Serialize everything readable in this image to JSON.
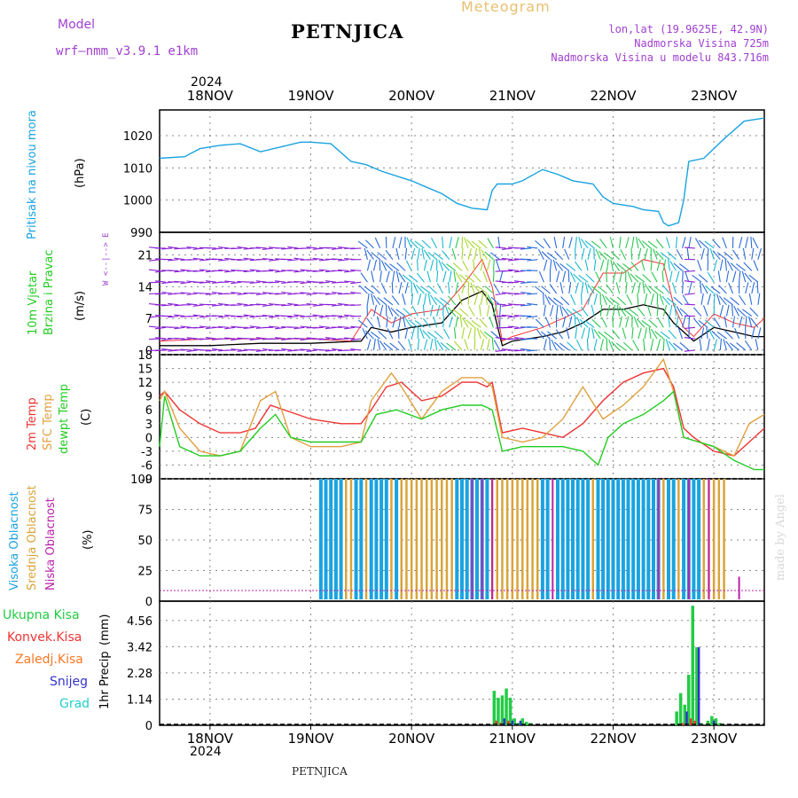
{
  "header": {
    "model_label": "Model",
    "model_name": "wrf—nmm_v3.9.1  e1km",
    "station": "PETNJICA",
    "meteogram": "Meteogram",
    "lonlat": "lon,lat (19.9625E, 42.9N)",
    "elev": "Nadmorska Visina 725m",
    "elev_model": "Nadmorska Visina u modelu 843.716m",
    "year_top": "2024",
    "year_bottom": "2024",
    "footer_station": "PETNJICA",
    "credit": "made by Angel"
  },
  "colors": {
    "pressure": "#1aa3e0",
    "wind_speed": "#000000",
    "wind_gust": "#ff3333",
    "temp2m": "#ee3333",
    "sfc": "#e0a040",
    "dewpt": "#22cc22",
    "high": "#1aa3e0",
    "mid": "#d9a43a",
    "low": "#bb22aa",
    "total": "#22cc44",
    "convective": "#ee3333",
    "frozen": "#ff7722",
    "snow": "#3333cc",
    "graupel": "#22cccc"
  },
  "chart_data": [
    {
      "type": "line",
      "ylabel_main": "Pritisak na nivou mora",
      "ylabel_unit": "(hPa)",
      "ylim": [
        990,
        1028
      ],
      "yticks": [
        990,
        1000,
        1010,
        1020
      ],
      "xticks": [
        "18NOV",
        "19NOV",
        "20NOV",
        "21NOV",
        "22NOV",
        "23NOV"
      ],
      "x_day_range": [
        17.5,
        23.5
      ],
      "series": [
        {
          "key": "pressure",
          "x": [
            17.5,
            17.75,
            17.9,
            18.1,
            18.3,
            18.5,
            18.7,
            18.9,
            19.0,
            19.2,
            19.4,
            19.55,
            19.7,
            19.9,
            20.0,
            20.15,
            20.3,
            20.45,
            20.6,
            20.75,
            20.8,
            20.85,
            21.0,
            21.1,
            21.3,
            21.45,
            21.6,
            21.8,
            21.9,
            22.0,
            22.2,
            22.3,
            22.45,
            22.5,
            22.55,
            22.65,
            22.7,
            22.75,
            22.9,
            23.1,
            23.3,
            23.5
          ],
          "y": [
            1013,
            1013.5,
            1016,
            1017,
            1017.5,
            1015,
            1016.5,
            1018,
            1018,
            1017.5,
            1012,
            1011,
            1009,
            1007,
            1006,
            1004,
            1002,
            999,
            997.5,
            997,
            1003,
            1005,
            1005,
            1006,
            1009.5,
            1008,
            1006,
            1005,
            1001,
            999,
            998,
            997,
            996.5,
            993,
            992,
            993,
            1000,
            1012,
            1013,
            1019,
            1024.5,
            1025.5
          ]
        }
      ]
    },
    {
      "type": "line",
      "ylabel_main": "10m Vjetar",
      "ylabel_main2": "Brzina i Pravac",
      "ylabel_unit": "(m/s)",
      "compass": "W  <--|--> E",
      "ylim": [
        -1,
        26
      ],
      "yticks": [
        0,
        7,
        14,
        21
      ],
      "xticks": [
        "18NOV",
        "19NOV",
        "20NOV",
        "21NOV",
        "22NOV",
        "23NOV"
      ],
      "series": [
        {
          "key": "wind_speed",
          "x": [
            17.5,
            18.0,
            18.5,
            19.0,
            19.5,
            19.6,
            19.8,
            20.0,
            20.3,
            20.5,
            20.7,
            20.8,
            20.9,
            21.0,
            21.3,
            21.5,
            21.7,
            21.9,
            22.1,
            22.3,
            22.5,
            22.6,
            22.7,
            22.8,
            23.0,
            23.2,
            23.4,
            23.5
          ],
          "y": [
            1,
            1,
            1.5,
            1.5,
            2,
            5,
            4,
            5,
            6,
            11,
            13,
            10,
            1,
            2,
            3,
            4,
            6,
            9,
            9,
            10,
            9,
            6,
            4,
            2,
            5,
            4,
            3,
            3
          ]
        },
        {
          "key": "wind_gust",
          "x": [
            17.5,
            18.0,
            18.5,
            19.0,
            19.4,
            19.6,
            19.8,
            20.0,
            20.3,
            20.5,
            20.7,
            20.8,
            20.9,
            21.0,
            21.3,
            21.5,
            21.7,
            21.9,
            22.1,
            22.3,
            22.5,
            22.6,
            22.7,
            22.8,
            23.0,
            23.2,
            23.4,
            23.5
          ],
          "y": [
            2,
            2.5,
            2.5,
            2.5,
            2,
            9,
            6,
            8,
            9,
            14,
            20,
            14,
            2,
            3,
            5,
            7,
            9,
            17,
            17,
            20,
            19,
            10,
            5,
            3,
            8,
            6,
            5,
            7
          ]
        }
      ]
    },
    {
      "type": "line",
      "ylabel_main": "2m Temp",
      "ylabel_main2": "SFC Temp",
      "ylabel_main3": "dewpt Temp",
      "ylabel_unit": "(C)",
      "ylim": [
        -9,
        18
      ],
      "yticks": [
        -9,
        -6,
        -3,
        0,
        3,
        6,
        9,
        12,
        15,
        18
      ],
      "xticks": [
        "18NOV",
        "19NOV",
        "20NOV",
        "21NOV",
        "22NOV",
        "23NOV"
      ],
      "series": [
        {
          "key": "temp2m",
          "x": [
            17.5,
            17.55,
            17.7,
            17.9,
            18.1,
            18.3,
            18.45,
            18.6,
            19.0,
            19.3,
            19.5,
            19.6,
            19.75,
            19.9,
            20.1,
            20.3,
            20.5,
            20.65,
            20.75,
            20.8,
            20.9,
            21.1,
            21.3,
            21.5,
            21.7,
            21.9,
            22.1,
            22.3,
            22.5,
            22.6,
            22.7,
            22.8,
            23.0,
            23.2,
            23.35,
            23.5
          ],
          "y": [
            9,
            10,
            6,
            3,
            1,
            1,
            2,
            7,
            4,
            3,
            3,
            6,
            11,
            12,
            8,
            9,
            12,
            12,
            11,
            12,
            1,
            2,
            1,
            0,
            3,
            8,
            12,
            14,
            15,
            11,
            2,
            0,
            -3,
            -4,
            -1,
            2
          ]
        },
        {
          "key": "sfc",
          "x": [
            17.5,
            17.55,
            17.7,
            17.9,
            18.1,
            18.3,
            18.5,
            18.65,
            18.8,
            19.0,
            19.3,
            19.5,
            19.6,
            19.8,
            19.9,
            20.1,
            20.3,
            20.5,
            20.7,
            20.8,
            20.9,
            21.1,
            21.3,
            21.5,
            21.7,
            21.9,
            22.1,
            22.3,
            22.5,
            22.6,
            22.7,
            22.85,
            23.0,
            23.2,
            23.35,
            23.5
          ],
          "y": [
            8,
            10,
            2,
            -3,
            -4,
            -3,
            8,
            10,
            0,
            -2,
            -2,
            -1,
            8,
            14,
            11,
            4,
            10,
            13,
            13,
            11,
            0,
            -1,
            0,
            4,
            11,
            4,
            7,
            11,
            17,
            10,
            0,
            -1,
            -2,
            -4,
            3,
            5
          ]
        },
        {
          "key": "dewpt",
          "x": [
            17.5,
            17.55,
            17.7,
            17.9,
            18.1,
            18.3,
            18.5,
            18.65,
            18.8,
            19.0,
            19.3,
            19.5,
            19.65,
            19.85,
            20.1,
            20.3,
            20.5,
            20.7,
            20.8,
            20.9,
            21.1,
            21.3,
            21.5,
            21.7,
            21.85,
            21.95,
            22.1,
            22.3,
            22.5,
            22.6,
            22.7,
            22.85,
            23.0,
            23.2,
            23.4,
            23.5
          ],
          "y": [
            -2,
            9,
            -2,
            -4,
            -4,
            -3,
            2,
            5,
            0,
            -1,
            -1,
            -1,
            5,
            6,
            4,
            6,
            7,
            7,
            6,
            -3,
            -2,
            -2,
            -2,
            -3,
            -6,
            0,
            3,
            5,
            8,
            10,
            0,
            -1,
            -2,
            -5,
            -7,
            -7
          ]
        }
      ]
    },
    {
      "type": "bar",
      "ylabel_main": "Visoka Oblacnost",
      "ylabel_main2": "Srednja Oblacnost",
      "ylabel_main3": "Niska Oblacnost",
      "ylabel_unit": "(%)",
      "ylim": [
        0,
        100
      ],
      "yticks": [
        0,
        25,
        50,
        75,
        100
      ],
      "xticks": [
        "18NOV",
        "19NOV",
        "20NOV",
        "21NOV",
        "22NOV",
        "23NOV"
      ],
      "series": [
        {
          "key": "high",
          "x": [
            19.1,
            19.15,
            19.2,
            19.25,
            19.3,
            19.45,
            19.5,
            19.6,
            19.65,
            19.7,
            19.75,
            19.85,
            20.45,
            20.5,
            20.55,
            20.6,
            20.65,
            20.7,
            20.75,
            21.3,
            21.35,
            21.45,
            21.5,
            21.55,
            21.6,
            21.65,
            21.7,
            21.75,
            21.85,
            21.9,
            21.95,
            22.0,
            22.05,
            22.1,
            22.15,
            22.2,
            22.25,
            22.3,
            22.35,
            22.4,
            22.45,
            22.55,
            22.6,
            22.7,
            22.75,
            22.8,
            22.85
          ],
          "values": [
            100,
            100,
            100,
            100,
            100,
            100,
            100,
            100,
            100,
            100,
            100,
            100,
            100,
            100,
            100,
            100,
            100,
            100,
            100,
            100,
            100,
            100,
            100,
            100,
            100,
            100,
            100,
            100,
            100,
            100,
            100,
            100,
            100,
            100,
            100,
            100,
            100,
            100,
            100,
            100,
            100,
            100,
            100,
            100,
            100,
            100,
            100
          ]
        },
        {
          "key": "mid",
          "x": [
            19.35,
            19.4,
            19.55,
            19.8,
            19.9,
            19.95,
            20.0,
            20.05,
            20.1,
            20.15,
            20.2,
            20.25,
            20.3,
            20.35,
            20.4,
            20.8,
            20.85,
            20.9,
            20.95,
            21.0,
            21.05,
            21.1,
            21.15,
            21.2,
            21.25,
            21.8,
            22.5,
            22.65,
            22.9,
            22.95,
            23.0,
            23.05,
            23.1
          ],
          "values": [
            100,
            100,
            100,
            100,
            100,
            100,
            100,
            100,
            100,
            100,
            100,
            100,
            100,
            100,
            100,
            100,
            100,
            100,
            100,
            100,
            100,
            100,
            100,
            100,
            100,
            100,
            100,
            100,
            100,
            100,
            100,
            100,
            100
          ]
        },
        {
          "key": "low",
          "x": [
            20.6,
            20.7,
            20.8,
            21.4,
            22.45,
            22.75,
            22.95,
            23.25
          ],
          "values": [
            100,
            100,
            100,
            100,
            100,
            100,
            100,
            20
          ]
        }
      ]
    },
    {
      "type": "bar",
      "ylabel_main": "1hr Precip",
      "ylabel_unit": "(mm)",
      "legend": [
        "Ukupna Kisa",
        "Konvek.Kisa",
        "Zaledj.Kisa",
        "Snijeg",
        "Grad"
      ],
      "ylim": [
        0,
        5.4
      ],
      "yticks": [
        0,
        1.14,
        2.28,
        3.42,
        4.56
      ],
      "xticks": [
        "18NOV",
        "19NOV",
        "20NOV",
        "21NOV",
        "22NOV",
        "23NOV"
      ],
      "series": [
        {
          "key": "total",
          "x": [
            20.82,
            20.86,
            20.9,
            20.94,
            20.98,
            21.02,
            21.06,
            21.1,
            21.14,
            21.18,
            22.63,
            22.67,
            22.71,
            22.75,
            22.79,
            22.83,
            22.87,
            22.94,
            22.98,
            23.02,
            23.06
          ],
          "values": [
            1.5,
            1.2,
            1.3,
            1.6,
            1.2,
            0.3,
            0.1,
            0.3,
            0.15,
            0.1,
            0.6,
            1.4,
            0.9,
            2.2,
            5.2,
            3.4,
            0.1,
            0.2,
            0.4,
            0.3,
            0.1
          ]
        },
        {
          "key": "convective",
          "x": [
            20.84,
            20.88,
            20.96,
            22.69,
            22.77,
            22.81
          ],
          "values": [
            0.2,
            0.1,
            0.2,
            0.1,
            0.3,
            0.2
          ]
        },
        {
          "key": "snow",
          "x": [
            20.92,
            21.0,
            21.08,
            22.73,
            22.85,
            23.0
          ],
          "values": [
            0.3,
            0.2,
            0.2,
            0.6,
            3.4,
            0.2
          ]
        }
      ]
    }
  ]
}
